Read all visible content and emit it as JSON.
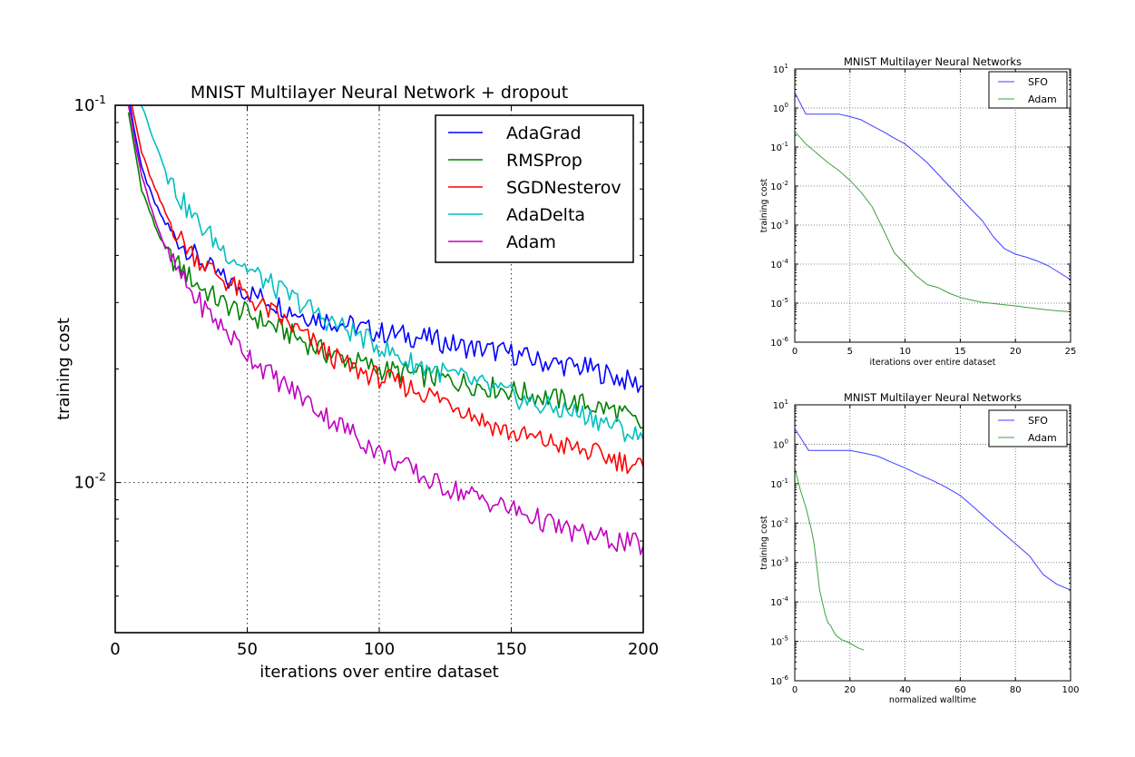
{
  "chart_data": [
    {
      "id": "main",
      "type": "line",
      "title": "MNIST Multilayer Neural Network + dropout",
      "xlabel": "iterations over entire dataset",
      "ylabel": "training cost",
      "xscale": "linear",
      "yscale": "log",
      "xlim": [
        0,
        200
      ],
      "ylim": [
        0.004,
        0.1
      ],
      "x_ticks": [
        0,
        50,
        100,
        150,
        200
      ],
      "x_tick_labels": [
        "0",
        "50",
        "100",
        "150",
        "200"
      ],
      "y_ticks": [
        0.1,
        0.01
      ],
      "y_tick_labels": [
        {
          "base": "10",
          "exp": "-1"
        },
        {
          "base": "10",
          "exp": "-2"
        }
      ],
      "grid": true,
      "legend_position": "upper right",
      "x": [
        5,
        10,
        15,
        20,
        25,
        30,
        40,
        50,
        60,
        70,
        80,
        90,
        100,
        110,
        120,
        130,
        140,
        150,
        160,
        170,
        180,
        190,
        200
      ],
      "series": [
        {
          "name": "AdaGrad",
          "color": "#0000ff",
          "values": [
            0.105,
            0.068,
            0.055,
            0.047,
            0.043,
            0.04,
            0.035,
            0.032,
            0.03,
            0.028,
            0.027,
            0.026,
            0.025,
            0.0245,
            0.024,
            0.023,
            0.0225,
            0.022,
            0.021,
            0.0205,
            0.02,
            0.019,
            0.018
          ]
        },
        {
          "name": "RMSProp",
          "color": "#008000",
          "values": [
            0.095,
            0.06,
            0.048,
            0.04,
            0.037,
            0.034,
            0.03,
            0.028,
            0.026,
            0.024,
            0.022,
            0.021,
            0.02,
            0.0195,
            0.019,
            0.0185,
            0.018,
            0.0175,
            0.017,
            0.0165,
            0.016,
            0.0155,
            0.014
          ]
        },
        {
          "name": "SGDNesterov",
          "color": "#ff0000",
          "values": [
            0.11,
            0.075,
            0.06,
            0.05,
            0.044,
            0.04,
            0.035,
            0.031,
            0.028,
            0.025,
            0.022,
            0.02,
            0.019,
            0.018,
            0.017,
            0.016,
            0.0145,
            0.0135,
            0.013,
            0.0125,
            0.012,
            0.0115,
            0.011
          ]
        },
        {
          "name": "AdaDelta",
          "color": "#00bfbf",
          "values": [
            0.14,
            0.1,
            0.08,
            0.065,
            0.056,
            0.05,
            0.042,
            0.037,
            0.033,
            0.03,
            0.027,
            0.025,
            0.023,
            0.021,
            0.02,
            0.019,
            0.018,
            0.017,
            0.016,
            0.0155,
            0.015,
            0.014,
            0.013
          ]
        },
        {
          "name": "Adam",
          "color": "#bf00bf",
          "values": [
            0.1,
            0.065,
            0.05,
            0.04,
            0.035,
            0.031,
            0.026,
            0.022,
            0.019,
            0.017,
            0.015,
            0.0135,
            0.012,
            0.011,
            0.01,
            0.0095,
            0.009,
            0.0085,
            0.008,
            0.0075,
            0.0072,
            0.007,
            0.0068
          ]
        }
      ]
    },
    {
      "id": "top_right",
      "type": "line",
      "title": "MNIST Multilayer Neural Networks",
      "xlabel": "iterations over entire dataset",
      "ylabel": "training cost",
      "xscale": "linear",
      "yscale": "log",
      "xlim": [
        0,
        25
      ],
      "ylim": [
        1e-06,
        10
      ],
      "x_ticks": [
        0,
        5,
        10,
        15,
        20,
        25
      ],
      "x_tick_labels": [
        "0",
        "5",
        "10",
        "15",
        "20",
        "25"
      ],
      "y_ticks": [
        10,
        1,
        0.1,
        0.01,
        0.001,
        0.0001,
        1e-05,
        1e-06
      ],
      "y_tick_labels": [
        {
          "base": "10",
          "exp": "1"
        },
        {
          "base": "10",
          "exp": "0"
        },
        {
          "base": "10",
          "exp": "-1"
        },
        {
          "base": "10",
          "exp": "-2"
        },
        {
          "base": "10",
          "exp": "-3"
        },
        {
          "base": "10",
          "exp": "-4"
        },
        {
          "base": "10",
          "exp": "-5"
        },
        {
          "base": "10",
          "exp": "-6"
        }
      ],
      "grid": true,
      "legend_position": "upper right",
      "series": [
        {
          "name": "SFO",
          "color": "#3f3fff",
          "x": [
            0,
            1,
            2,
            3,
            4,
            5,
            6,
            7,
            8,
            9,
            10,
            11,
            12,
            13,
            14,
            15,
            16,
            17,
            18,
            19,
            20,
            21,
            22,
            23,
            24,
            25
          ],
          "values": [
            2.5,
            0.7,
            0.7,
            0.7,
            0.7,
            0.6,
            0.5,
            0.35,
            0.25,
            0.17,
            0.12,
            0.07,
            0.04,
            0.02,
            0.01,
            0.005,
            0.0025,
            0.0013,
            0.0005,
            0.00025,
            0.00018,
            0.00015,
            0.00012,
            9e-05,
            6e-05,
            4e-05
          ]
        },
        {
          "name": "Adam",
          "color": "#3fa03f",
          "x": [
            0,
            1,
            2,
            3,
            4,
            5,
            6,
            7,
            8,
            9,
            10,
            11,
            12,
            13,
            14,
            15,
            16,
            17,
            18,
            19,
            20,
            21,
            22,
            23,
            24,
            25
          ],
          "values": [
            0.25,
            0.12,
            0.07,
            0.04,
            0.025,
            0.014,
            0.007,
            0.003,
            0.0008,
            0.0002,
            0.0001,
            5e-05,
            3e-05,
            2.5e-05,
            1.8e-05,
            1.4e-05,
            1.2e-05,
            1.05e-05,
            9.8e-06,
            9.1e-06,
            8.5e-06,
            7.8e-06,
            7.2e-06,
            6.7e-06,
            6.3e-06,
            6e-06
          ]
        }
      ]
    },
    {
      "id": "bottom_right",
      "type": "line",
      "title": "MNIST Multilayer Neural Networks",
      "xlabel": "normalized walltime",
      "ylabel": "training cost",
      "xscale": "linear",
      "yscale": "log",
      "xlim": [
        0,
        100
      ],
      "ylim": [
        1e-06,
        10
      ],
      "x_ticks": [
        0,
        20,
        40,
        60,
        80,
        100
      ],
      "x_tick_labels": [
        "0",
        "20",
        "40",
        "60",
        "80",
        "100"
      ],
      "y_ticks": [
        10,
        1,
        0.1,
        0.01,
        0.001,
        0.0001,
        1e-05,
        1e-06
      ],
      "y_tick_labels": [
        {
          "base": "10",
          "exp": "1"
        },
        {
          "base": "10",
          "exp": "0"
        },
        {
          "base": "10",
          "exp": "-1"
        },
        {
          "base": "10",
          "exp": "-2"
        },
        {
          "base": "10",
          "exp": "-3"
        },
        {
          "base": "10",
          "exp": "-4"
        },
        {
          "base": "10",
          "exp": "-5"
        },
        {
          "base": "10",
          "exp": "-6"
        }
      ],
      "grid": true,
      "legend_position": "upper right",
      "series": [
        {
          "name": "SFO",
          "color": "#3f3fff",
          "x": [
            0,
            5,
            10,
            15,
            20,
            25,
            30,
            35,
            40,
            45,
            50,
            55,
            60,
            65,
            70,
            75,
            80,
            85,
            90,
            95,
            100
          ],
          "values": [
            2.5,
            0.7,
            0.7,
            0.7,
            0.7,
            0.6,
            0.5,
            0.35,
            0.25,
            0.17,
            0.12,
            0.08,
            0.05,
            0.025,
            0.012,
            0.006,
            0.003,
            0.0015,
            0.0005,
            0.00028,
            0.0002
          ]
        },
        {
          "name": "Adam",
          "color": "#3fa03f",
          "x": [
            0,
            2,
            4,
            6,
            7,
            8,
            9,
            10,
            11,
            12,
            13,
            14,
            15,
            17,
            19,
            21,
            23,
            25
          ],
          "values": [
            0.25,
            0.07,
            0.025,
            0.007,
            0.003,
            0.0008,
            0.0002,
            0.0001,
            5e-05,
            3e-05,
            2.5e-05,
            1.8e-05,
            1.4e-05,
            1.1e-05,
            9.8e-06,
            8.2e-06,
            6.8e-06,
            6e-06
          ]
        }
      ]
    }
  ]
}
